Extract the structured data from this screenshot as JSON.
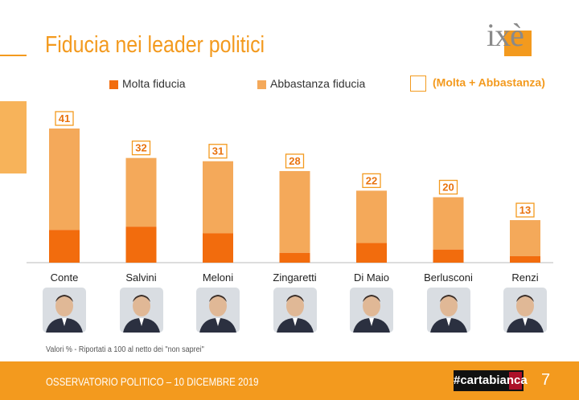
{
  "title": "Fiducia nei leader politici",
  "logo_text": "ixè",
  "legend": {
    "molta": "Molta fiducia",
    "abbastanza": "Abbastanza fiducia",
    "total": "(Molta + Abbastanza)"
  },
  "note": "Valori % - Riportati a 100 al netto dei \"non saprei\"",
  "footer": {
    "text": "OSSERVATORIO POLITICO – 10 DICEMBRE 2019",
    "brand": "#cartabianca",
    "page": "7"
  },
  "colors": {
    "molta": "#f26c0d",
    "abbastanza": "#f4a95a",
    "accent": "#f39a1e"
  },
  "chart_data": {
    "type": "bar",
    "stacked": true,
    "categories": [
      "Conte",
      "Salvini",
      "Meloni",
      "Zingaretti",
      "Di Maio",
      "Berlusconi",
      "Renzi"
    ],
    "series": [
      {
        "name": "Molta fiducia",
        "values": [
          10,
          11,
          9,
          3,
          6,
          4,
          2
        ]
      },
      {
        "name": "Abbastanza fiducia",
        "values": [
          31,
          21,
          22,
          25,
          16,
          16,
          11
        ]
      }
    ],
    "totals": [
      41,
      32,
      31,
      28,
      22,
      20,
      13
    ],
    "ylim": [
      0,
      41
    ]
  },
  "photos": [
    "person-photo-conte",
    "person-photo-salvini",
    "person-photo-meloni",
    "person-photo-zingaretti",
    "person-photo-di-maio",
    "person-photo-berlusconi",
    "person-photo-renzi"
  ]
}
